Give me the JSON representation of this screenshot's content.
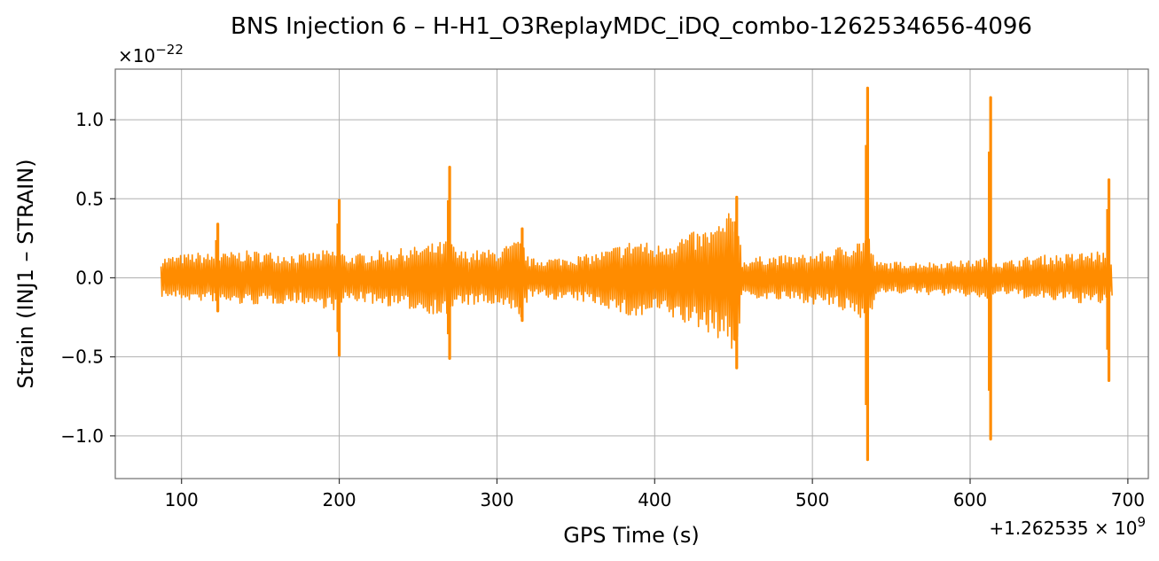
{
  "chart_data": {
    "type": "line",
    "title": "BNS Injection 6 – H-H1_O3ReplayMDC_iDQ_combo-1262534656-4096",
    "xlabel": "GPS Time (s)",
    "ylabel": "Strain (INJ1 – STRAIN)",
    "x_offset_label": "+1.262535 × 10",
    "x_offset_exp": "9",
    "y_scale_label": "×10",
    "y_scale_exp": "−22",
    "xlim": [
      58,
      713
    ],
    "ylim": [
      -1.27,
      1.32
    ],
    "x_ticks": [
      100,
      200,
      300,
      400,
      500,
      600,
      700
    ],
    "x_tick_labels": [
      "100",
      "200",
      "300",
      "400",
      "500",
      "600",
      "700"
    ],
    "y_ticks": [
      -1.0,
      -0.5,
      0.0,
      0.5,
      1.0
    ],
    "y_tick_labels": [
      "−1.0",
      "−0.5",
      "0.0",
      "0.5",
      "1.0"
    ],
    "grid": true,
    "series": [
      {
        "color": "#ff8c00",
        "envelope": {
          "x": [
            87,
            95,
            110,
            123,
            135,
            150,
            175,
            195,
            200,
            205,
            225,
            245,
            265,
            270,
            275,
            300,
            316,
            320,
            340,
            360,
            370,
            380,
            390,
            400,
            410,
            420,
            430,
            440,
            448,
            453,
            455,
            470,
            490,
            510,
            530,
            535,
            540,
            560,
            580,
            600,
            612,
            614,
            620,
            640,
            660,
            680,
            688,
            690
          ],
          "upper": [
            0.13,
            0.14,
            0.16,
            0.15,
            0.17,
            0.17,
            0.15,
            0.18,
            0.18,
            0.14,
            0.17,
            0.19,
            0.23,
            0.24,
            0.17,
            0.18,
            0.25,
            0.12,
            0.13,
            0.15,
            0.18,
            0.22,
            0.25,
            0.2,
            0.25,
            0.28,
            0.3,
            0.34,
            0.42,
            0.48,
            0.11,
            0.14,
            0.14,
            0.17,
            0.25,
            0.3,
            0.1,
            0.1,
            0.1,
            0.11,
            0.13,
            0.12,
            0.1,
            0.14,
            0.15,
            0.17,
            0.16,
            0.12
          ],
          "lower": [
            -0.12,
            -0.13,
            -0.15,
            -0.15,
            -0.17,
            -0.17,
            -0.16,
            -0.2,
            -0.22,
            -0.14,
            -0.17,
            -0.2,
            -0.24,
            -0.25,
            -0.17,
            -0.18,
            -0.26,
            -0.12,
            -0.14,
            -0.16,
            -0.19,
            -0.24,
            -0.27,
            -0.21,
            -0.26,
            -0.3,
            -0.33,
            -0.38,
            -0.45,
            -0.5,
            -0.11,
            -0.14,
            -0.15,
            -0.18,
            -0.26,
            -0.33,
            -0.1,
            -0.1,
            -0.11,
            -0.12,
            -0.14,
            -0.13,
            -0.1,
            -0.14,
            -0.15,
            -0.17,
            -0.17,
            -0.12
          ]
        },
        "spikes": [
          {
            "x": 123,
            "max": 0.34,
            "min": -0.21
          },
          {
            "x": 200,
            "max": 0.49,
            "min": -0.49
          },
          {
            "x": 270,
            "max": 0.7,
            "min": -0.51
          },
          {
            "x": 316,
            "max": 0.31,
            "min": -0.27
          },
          {
            "x": 452,
            "max": 0.51,
            "min": -0.57
          },
          {
            "x": 535,
            "max": 1.2,
            "min": -1.15
          },
          {
            "x": 613,
            "max": 1.14,
            "min": -1.02
          },
          {
            "x": 688,
            "max": 0.62,
            "min": -0.65
          }
        ]
      }
    ]
  }
}
